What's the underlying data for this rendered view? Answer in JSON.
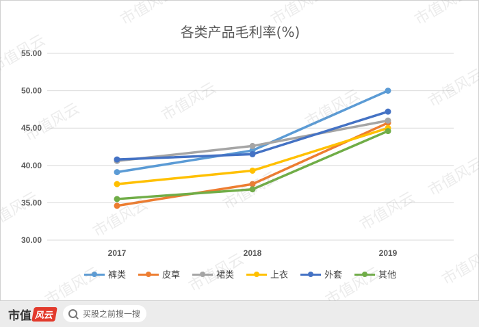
{
  "chart_data": {
    "type": "line",
    "title": "各类产品毛利率(%)",
    "categories": [
      "2017",
      "2018",
      "2019"
    ],
    "ylim": [
      30,
      55
    ],
    "yticks": [
      "30.00",
      "35.00",
      "40.00",
      "45.00",
      "50.00",
      "55.00"
    ],
    "grid": true,
    "legend_position": "bottom",
    "series": [
      {
        "name": "裤类",
        "color": "#5b9bd5",
        "values": [
          39.1,
          42.0,
          50.0
        ]
      },
      {
        "name": "皮草",
        "color": "#ed7d31",
        "values": [
          34.6,
          37.5,
          45.7
        ]
      },
      {
        "name": "裙类",
        "color": "#a5a5a5",
        "values": [
          40.6,
          42.6,
          46.0
        ]
      },
      {
        "name": "上衣",
        "color": "#ffc000",
        "values": [
          37.5,
          39.3,
          45.0
        ]
      },
      {
        "name": "外套",
        "color": "#4472c4",
        "values": [
          40.8,
          41.5,
          47.2
        ]
      },
      {
        "name": "其他",
        "color": "#70ad47",
        "values": [
          35.5,
          36.8,
          44.6
        ]
      }
    ]
  },
  "watermark_text": "市值风云",
  "footer": {
    "brand_text": "市值",
    "brand_logo": "风云",
    "search_placeholder": "买股之前搜一搜"
  }
}
